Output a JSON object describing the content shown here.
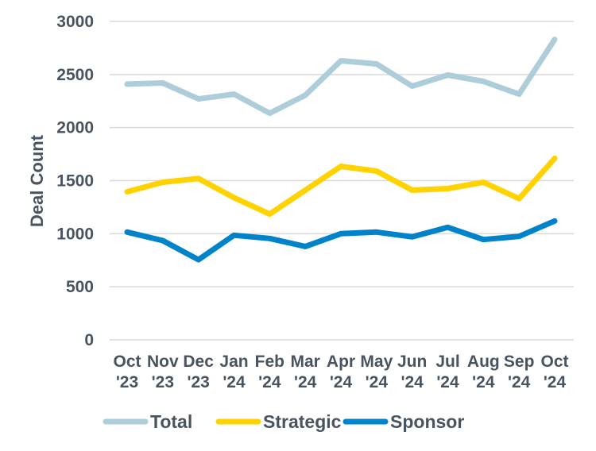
{
  "chart_data": {
    "type": "line",
    "title": "",
    "xlabel": "",
    "ylabel": "Deal Count",
    "ylim": [
      0,
      3000
    ],
    "yticks": [
      0,
      500,
      1000,
      1500,
      2000,
      2500,
      3000
    ],
    "grid": true,
    "legend_position": "bottom",
    "categories": [
      [
        "Oct",
        "'23"
      ],
      [
        "Nov",
        "'23"
      ],
      [
        "Dec",
        "'23"
      ],
      [
        "Jan",
        "'24"
      ],
      [
        "Feb",
        "'24"
      ],
      [
        "Mar",
        "'24"
      ],
      [
        "Apr",
        "'24"
      ],
      [
        "May",
        "'24"
      ],
      [
        "Jun",
        "'24"
      ],
      [
        "Jul",
        "'24"
      ],
      [
        "Aug",
        "'24"
      ],
      [
        "Sep",
        "'24"
      ],
      [
        "Oct",
        "'24"
      ]
    ],
    "series": [
      {
        "name": "Total",
        "color": "#aecddb",
        "values": [
          2410,
          2420,
          2270,
          2315,
          2135,
          2305,
          2630,
          2600,
          2390,
          2495,
          2435,
          2315,
          2830
        ]
      },
      {
        "name": "Strategic",
        "color": "#ffd200",
        "values": [
          1395,
          1485,
          1520,
          1340,
          1185,
          1410,
          1635,
          1590,
          1410,
          1425,
          1485,
          1330,
          1710
        ]
      },
      {
        "name": "Sponsor",
        "color": "#0083cb",
        "values": [
          1015,
          935,
          755,
          985,
          955,
          880,
          1000,
          1015,
          970,
          1060,
          945,
          975,
          1120
        ]
      }
    ]
  }
}
